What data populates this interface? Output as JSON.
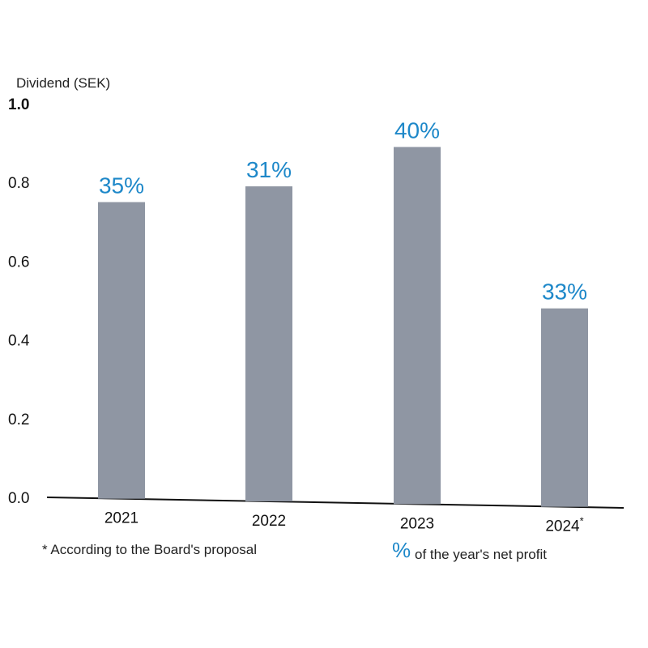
{
  "chart_data": {
    "type": "bar",
    "ylabel": "Dividend (SEK)",
    "ylim": [
      0,
      1.0
    ],
    "y_ticks": [
      "0.0",
      "0.2",
      "0.4",
      "0.6",
      "0.8",
      "1.0"
    ],
    "categories": [
      "2021",
      "2022",
      "2023",
      "2024"
    ],
    "category_markers": [
      "",
      "",
      "",
      "*"
    ],
    "values": [
      0.75,
      0.79,
      0.89,
      0.48
    ],
    "data_labels": [
      "35%",
      "31%",
      "40%",
      "33%"
    ],
    "bar_color": "#8f96a3",
    "label_color": "#1e88c9",
    "grid": false
  },
  "footnotes": {
    "proposal_note": "* According to the Board's proposal",
    "percent_symbol": "%",
    "percent_note": "of the year's net profit"
  }
}
